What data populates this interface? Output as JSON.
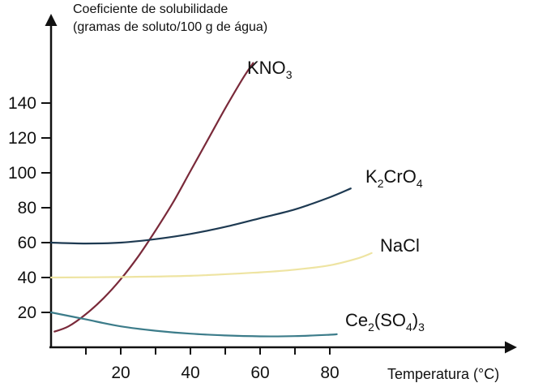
{
  "chart_data": {
    "type": "line",
    "ylabel_lines": [
      "Coeficiente de solubilidade",
      "(gramas de soluto/100 g de água)"
    ],
    "xlabel": "Temperatura (°C)",
    "x_ticks": [
      10,
      20,
      30,
      40,
      50,
      60,
      70,
      80
    ],
    "x_tick_labels": [
      {
        "value": 20,
        "label": "20"
      },
      {
        "value": 40,
        "label": "40"
      },
      {
        "value": 60,
        "label": "60"
      },
      {
        "value": 80,
        "label": "80"
      }
    ],
    "y_tick_labels": [
      {
        "value": 20,
        "label": "20"
      },
      {
        "value": 40,
        "label": "40"
      },
      {
        "value": 60,
        "label": "60"
      },
      {
        "value": 80,
        "label": "80"
      },
      {
        "value": 100,
        "label": "100"
      },
      {
        "value": 120,
        "label": "120"
      },
      {
        "value": 140,
        "label": "140"
      }
    ],
    "xlim": [
      0,
      130
    ],
    "ylim": [
      0,
      190
    ],
    "grid": false,
    "series": [
      {
        "parts": [
          {
            "t": "KNO",
            "sub": false
          },
          {
            "t": "3",
            "sub": true
          }
        ],
        "color": "#7a2a3a",
        "points": [
          [
            1,
            9
          ],
          [
            5,
            12
          ],
          [
            10,
            19
          ],
          [
            15,
            28
          ],
          [
            20,
            39
          ],
          [
            25,
            52
          ],
          [
            30,
            67
          ],
          [
            35,
            83
          ],
          [
            40,
            101
          ],
          [
            45,
            119
          ],
          [
            50,
            137
          ],
          [
            55,
            154
          ],
          [
            58,
            163
          ]
        ]
      },
      {
        "parts": [
          {
            "t": "K",
            "sub": false
          },
          {
            "t": "2",
            "sub": true
          },
          {
            "t": "CrO",
            "sub": false
          },
          {
            "t": "4",
            "sub": true
          }
        ],
        "color": "#1e3a52",
        "points": [
          [
            0,
            60
          ],
          [
            10,
            59.5
          ],
          [
            20,
            60
          ],
          [
            30,
            62
          ],
          [
            40,
            65
          ],
          [
            50,
            69
          ],
          [
            60,
            74
          ],
          [
            70,
            79
          ],
          [
            80,
            86
          ],
          [
            86,
            91
          ]
        ]
      },
      {
        "parts": [
          {
            "t": "NaCl",
            "sub": false
          }
        ],
        "color": "#eee4a2",
        "points": [
          [
            0,
            40
          ],
          [
            20,
            40.3
          ],
          [
            40,
            41
          ],
          [
            60,
            43
          ],
          [
            70,
            44.5
          ],
          [
            80,
            47
          ],
          [
            88,
            51
          ],
          [
            92,
            54
          ]
        ]
      },
      {
        "parts": [
          {
            "t": "Ce",
            "sub": false
          },
          {
            "t": "2",
            "sub": true
          },
          {
            "t": "(SO",
            "sub": false
          },
          {
            "t": "4",
            "sub": true
          },
          {
            "t": ")",
            "sub": false
          },
          {
            "t": "3",
            "sub": true
          }
        ],
        "color": "#3c7c8a",
        "points": [
          [
            0,
            20
          ],
          [
            10,
            16
          ],
          [
            20,
            12
          ],
          [
            30,
            9.5
          ],
          [
            40,
            7.8
          ],
          [
            50,
            6.8
          ],
          [
            60,
            6.3
          ],
          [
            70,
            6.4
          ],
          [
            80,
            7.2
          ],
          [
            82,
            7.5
          ]
        ]
      }
    ]
  }
}
